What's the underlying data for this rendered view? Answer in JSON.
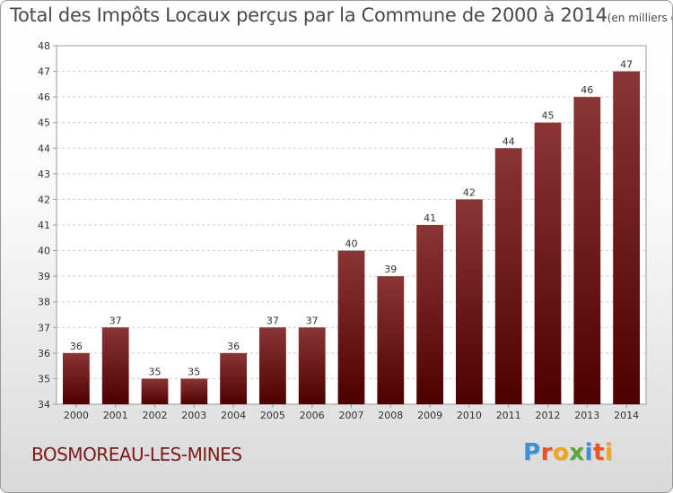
{
  "title": "Total des Impôts Locaux perçus par la Commune de 2000 à 2014",
  "subtitle": "(en milliers d'€)",
  "commune_name": "BOSMOREAU-LES-MINES",
  "logo": {
    "text": "Proxiti",
    "letters": [
      "P",
      "r",
      "o",
      "x",
      "i",
      "t",
      "i"
    ],
    "colors": [
      "#3d8fd6",
      "#e8542a",
      "#f2a41a",
      "#5aa83c",
      "#3d8fd6",
      "#e8542a",
      "#f2a41a"
    ]
  },
  "colors": {
    "bar_top": "#8b3535",
    "bar_bottom": "#4d0000",
    "grid": "#cccccc",
    "commune_text": "#7a1a1a"
  },
  "chart_data": {
    "type": "bar",
    "title": "Total des Impôts Locaux perçus par la Commune de 2000 à 2014",
    "subtitle": "(en milliers d'€)",
    "categories": [
      "2000",
      "2001",
      "2002",
      "2003",
      "2004",
      "2005",
      "2006",
      "2007",
      "2008",
      "2009",
      "2010",
      "2011",
      "2012",
      "2013",
      "2014"
    ],
    "values": [
      36,
      37,
      35,
      35,
      36,
      37,
      37,
      40,
      39,
      41,
      42,
      44,
      45,
      46,
      47
    ],
    "xlabel": "",
    "ylabel": "",
    "ylim": [
      34,
      48
    ],
    "yticks": [
      34,
      35,
      36,
      37,
      38,
      39,
      40,
      41,
      42,
      43,
      44,
      45,
      46,
      47,
      48
    ],
    "grid": true,
    "data_labels": true
  }
}
